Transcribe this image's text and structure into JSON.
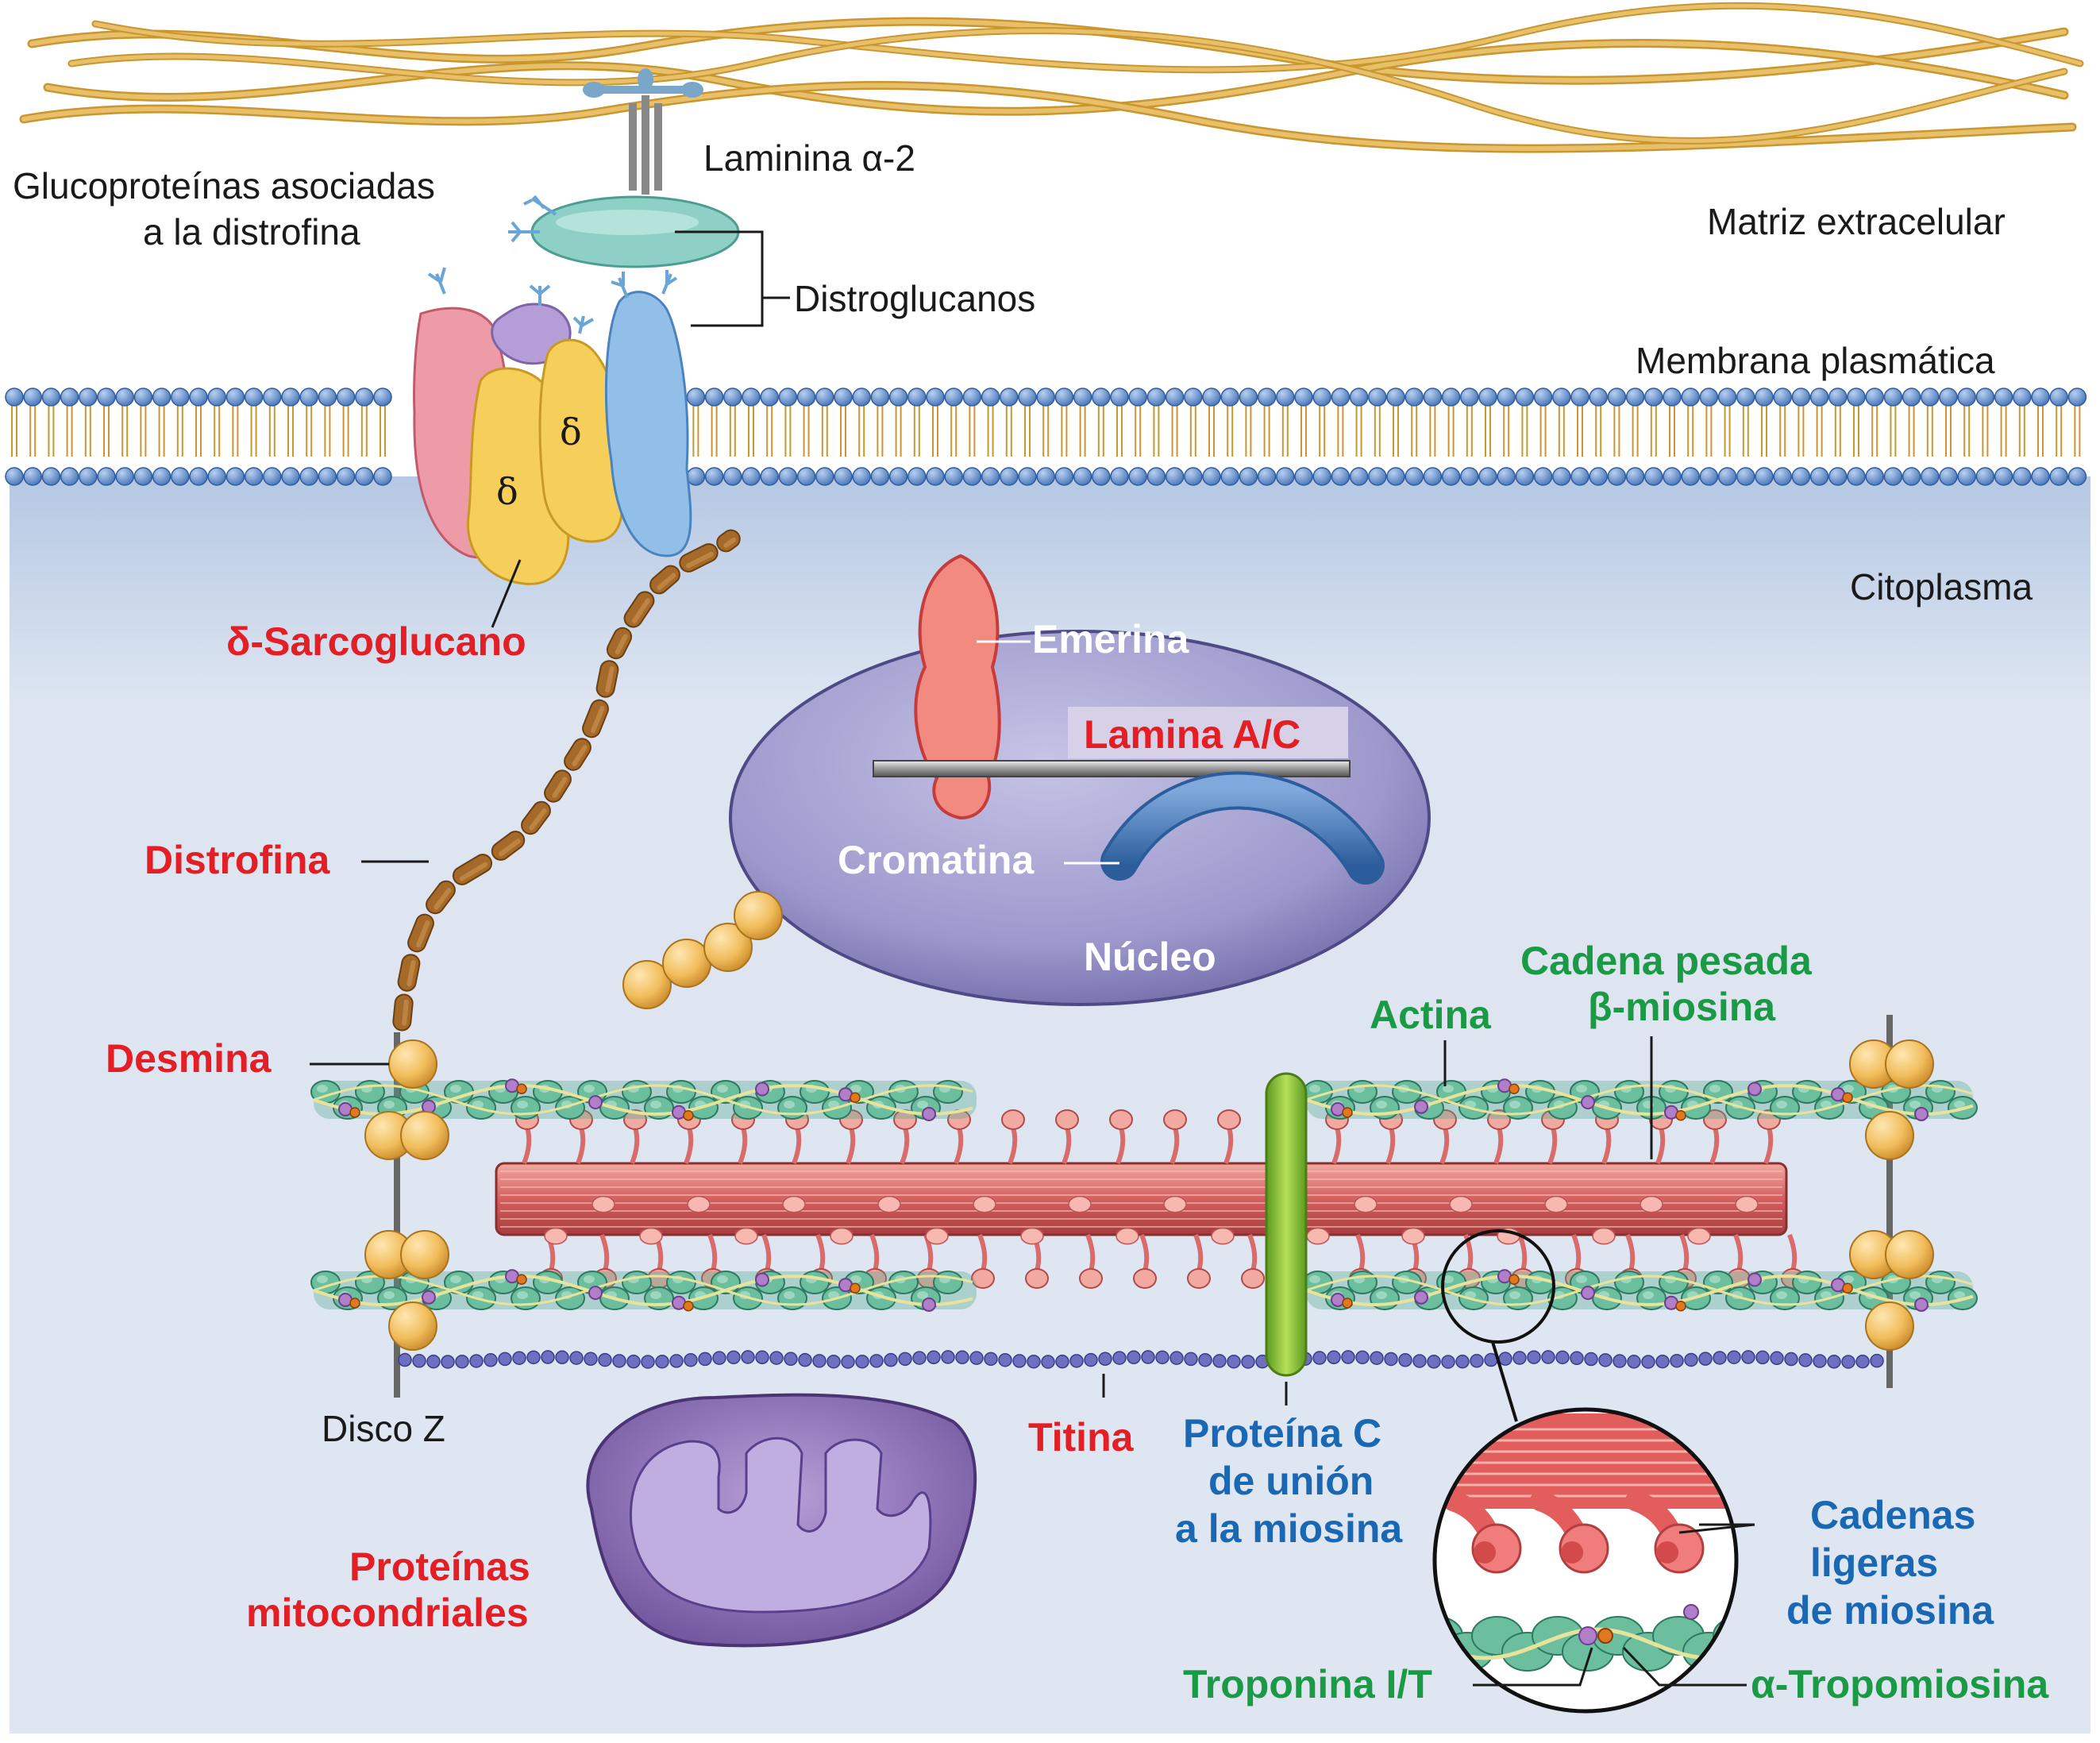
{
  "colors": {
    "cytoplasm": "#dde5f1",
    "collagen": "#dfb35c",
    "lipid_head": "#5a86c8",
    "nucleus": "#9c98cc",
    "myosin": "#d96b6b",
    "actin": "#4fa68b",
    "titin": "#5a5ea8",
    "mybpc": "#8fc63f",
    "mito": "#8c6bb5",
    "label_red": "#e31e24",
    "label_green": "#1b9a45",
    "label_blue": "#1a68b3"
  },
  "labels": {
    "laminina": "Laminina α-2",
    "glucoproteinas_1": "Glucoproteínas asociadas",
    "glucoproteinas_2": "a la distrofina",
    "matriz": "Matriz extracelular",
    "distroglucanos": "Distroglucanos",
    "membrana": "Membrana plasmática",
    "citoplasma": "Citoplasma",
    "delta": "δ",
    "sarcoglucano": "δ-Sarcoglucano",
    "emerina": "Emerina",
    "lamina": "Lamina A/C",
    "cromatina": "Cromatina",
    "nucleo": "Núcleo",
    "distrofina": "Distrofina",
    "desmina": "Desmina",
    "actina": "Actina",
    "cadena_pesada_1": "Cadena pesada",
    "cadena_pesada_2": "β-miosina",
    "disco_z": "Disco Z",
    "titina": "Titina",
    "proteina_c_1": "Proteína C",
    "proteina_c_2": "de unión",
    "proteina_c_3": "a la miosina",
    "mito_1": "Proteínas",
    "mito_2": "mitocondriales",
    "ligeras_1": "Cadenas",
    "ligeras_2": "ligeras",
    "ligeras_3": "de miosina",
    "troponina": "Troponina I/T",
    "tropomiosina": "α-Tropomiosina"
  }
}
